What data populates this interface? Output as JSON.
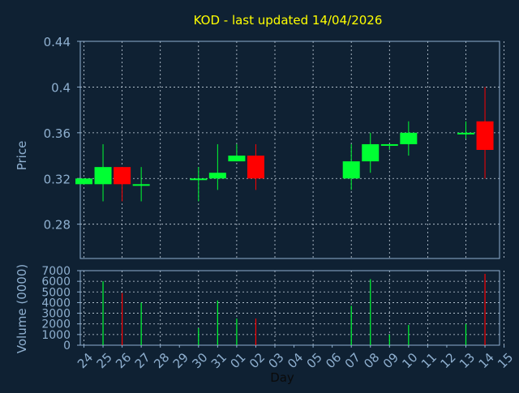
{
  "colors": {
    "background": "#0f2133",
    "axis": "#8fb0d0",
    "grid": "#c8d4e0",
    "title": "#ffff00",
    "up": "#00ff33",
    "down": "#ff0000"
  },
  "chart_data": [
    {
      "type": "candlestick",
      "title": "KOD - last updated 14/04/2026",
      "xlabel": "",
      "ylabel": "Price",
      "ylim": [
        0.25,
        0.44
      ],
      "yticks": [
        "0.44",
        "0.4",
        "0.36",
        "0.32",
        "0.28"
      ],
      "grid": true,
      "categories": [
        "24",
        "25",
        "26",
        "27",
        "28",
        "29",
        "30",
        "31",
        "01",
        "02",
        "03",
        "04",
        "05",
        "06",
        "07",
        "08",
        "09",
        "10",
        "11",
        "12",
        "13",
        "14",
        "15"
      ],
      "candles": [
        {
          "day": "24",
          "open": 0.315,
          "high": 0.32,
          "low": 0.315,
          "close": 0.32
        },
        {
          "day": "25",
          "open": 0.315,
          "high": 0.35,
          "low": 0.3,
          "close": 0.33
        },
        {
          "day": "26",
          "open": 0.33,
          "high": 0.33,
          "low": 0.3,
          "close": 0.315
        },
        {
          "day": "27",
          "open": 0.315,
          "high": 0.33,
          "low": 0.3,
          "close": 0.315
        },
        {
          "day": "30",
          "open": 0.32,
          "high": 0.33,
          "low": 0.3,
          "close": 0.32
        },
        {
          "day": "31",
          "open": 0.32,
          "high": 0.35,
          "low": 0.31,
          "close": 0.325
        },
        {
          "day": "01",
          "open": 0.335,
          "high": 0.35,
          "low": 0.335,
          "close": 0.34
        },
        {
          "day": "02",
          "open": 0.34,
          "high": 0.35,
          "low": 0.31,
          "close": 0.32
        },
        {
          "day": "07",
          "open": 0.32,
          "high": 0.35,
          "low": 0.31,
          "close": 0.335
        },
        {
          "day": "08",
          "open": 0.335,
          "high": 0.36,
          "low": 0.325,
          "close": 0.35
        },
        {
          "day": "09",
          "open": 0.35,
          "high": 0.35,
          "low": 0.345,
          "close": 0.35
        },
        {
          "day": "10",
          "open": 0.35,
          "high": 0.37,
          "low": 0.34,
          "close": 0.36
        },
        {
          "day": "13",
          "open": 0.36,
          "high": 0.37,
          "low": 0.355,
          "close": 0.36
        },
        {
          "day": "14",
          "open": 0.37,
          "high": 0.4,
          "low": 0.32,
          "close": 0.345
        }
      ]
    },
    {
      "type": "bar",
      "xlabel": "Day",
      "ylabel": "Volume (0000)",
      "ylim": [
        0,
        7000
      ],
      "yticks": [
        "7000",
        "6000",
        "5000",
        "4000",
        "3000",
        "2000",
        "1000",
        "0"
      ],
      "grid": true,
      "categories": [
        "24",
        "25",
        "26",
        "27",
        "28",
        "29",
        "30",
        "31",
        "01",
        "02",
        "03",
        "04",
        "05",
        "06",
        "07",
        "08",
        "09",
        "10",
        "11",
        "12",
        "13",
        "14",
        "15"
      ],
      "bars": [
        {
          "day": "25",
          "value": 6000,
          "dir": "up"
        },
        {
          "day": "26",
          "value": 4900,
          "dir": "down"
        },
        {
          "day": "27",
          "value": 4000,
          "dir": "up"
        },
        {
          "day": "30",
          "value": 1600,
          "dir": "up"
        },
        {
          "day": "31",
          "value": 4200,
          "dir": "up"
        },
        {
          "day": "01",
          "value": 2500,
          "dir": "up"
        },
        {
          "day": "02",
          "value": 2500,
          "dir": "down"
        },
        {
          "day": "07",
          "value": 3700,
          "dir": "up"
        },
        {
          "day": "08",
          "value": 6200,
          "dir": "up"
        },
        {
          "day": "09",
          "value": 1000,
          "dir": "up"
        },
        {
          "day": "10",
          "value": 1900,
          "dir": "up"
        },
        {
          "day": "13",
          "value": 2000,
          "dir": "up"
        },
        {
          "day": "14",
          "value": 6700,
          "dir": "down"
        }
      ]
    }
  ]
}
